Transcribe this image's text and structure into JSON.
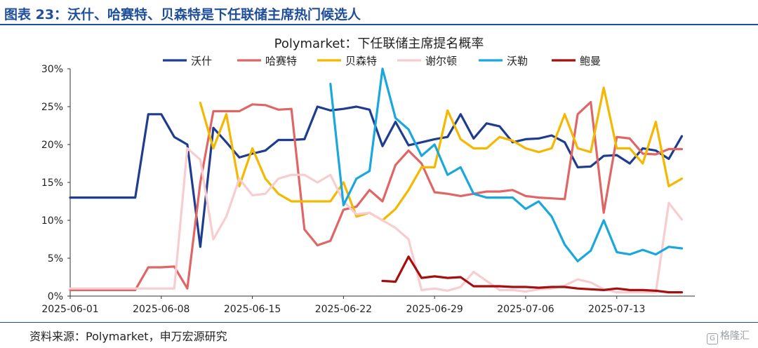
{
  "header": {
    "title": "图表 23：沃什、哈赛特、贝森特是下任联储主席热门候选人"
  },
  "footer": {
    "source": "资料来源：Polymarket，申万宏源研究"
  },
  "watermark": {
    "icon_name": "gelonghui-logo-icon",
    "text": "格隆汇"
  },
  "chart_data": {
    "type": "line",
    "title": "Polymarket：下任联储主席提名概率",
    "xlabel": "",
    "ylabel": "",
    "x_ticks": [
      "2025-06-01",
      "2025-06-08",
      "2025-06-15",
      "2025-06-22",
      "2025-06-29",
      "2025-07-06",
      "2025-07-13"
    ],
    "x_start": "2025-06-01",
    "x_end": "2025-07-19",
    "y_ticks": [
      "0%",
      "5%",
      "10%",
      "15%",
      "20%",
      "25%",
      "30%"
    ],
    "ylim": [
      0,
      30
    ],
    "y_unit": "%",
    "legend_position": "top",
    "grid": false,
    "series": [
      {
        "name": "沃什",
        "color": "#1f3d8f",
        "points": [
          [
            "2025-06-01",
            13
          ],
          [
            "2025-06-02",
            13
          ],
          [
            "2025-06-03",
            13
          ],
          [
            "2025-06-04",
            13
          ],
          [
            "2025-06-05",
            13
          ],
          [
            "2025-06-06",
            13
          ],
          [
            "2025-06-07",
            24
          ],
          [
            "2025-06-08",
            24
          ],
          [
            "2025-06-09",
            21
          ],
          [
            "2025-06-10",
            20
          ],
          [
            "2025-06-11",
            6.5
          ],
          [
            "2025-06-12",
            22.2
          ],
          [
            "2025-06-13",
            20.3
          ],
          [
            "2025-06-14",
            18.3
          ],
          [
            "2025-06-15",
            18.8
          ],
          [
            "2025-06-16",
            19.2
          ],
          [
            "2025-06-17",
            20.6
          ],
          [
            "2025-06-18",
            20.6
          ],
          [
            "2025-06-19",
            20.7
          ],
          [
            "2025-06-20",
            25
          ],
          [
            "2025-06-21",
            24.5
          ],
          [
            "2025-06-22",
            24.7
          ],
          [
            "2025-06-23",
            25
          ],
          [
            "2025-06-24",
            24.6
          ],
          [
            "2025-06-25",
            19.8
          ],
          [
            "2025-06-26",
            23
          ],
          [
            "2025-06-27",
            19.9
          ],
          [
            "2025-06-28",
            20.3
          ],
          [
            "2025-06-29",
            20.7
          ],
          [
            "2025-06-30",
            21
          ],
          [
            "2025-07-01",
            24
          ],
          [
            "2025-07-02",
            20.8
          ],
          [
            "2025-07-03",
            22.8
          ],
          [
            "2025-07-04",
            22.4
          ],
          [
            "2025-07-05",
            20.3
          ],
          [
            "2025-07-06",
            20.7
          ],
          [
            "2025-07-07",
            20.8
          ],
          [
            "2025-07-08",
            21.2
          ],
          [
            "2025-07-09",
            20.3
          ],
          [
            "2025-07-10",
            17
          ],
          [
            "2025-07-11",
            17.1
          ],
          [
            "2025-07-12",
            18.5
          ],
          [
            "2025-07-13",
            18.6
          ],
          [
            "2025-07-14",
            17.5
          ],
          [
            "2025-07-15",
            19.5
          ],
          [
            "2025-07-16",
            19.2
          ],
          [
            "2025-07-17",
            18.1
          ],
          [
            "2025-07-18",
            21.1
          ]
        ]
      },
      {
        "name": "哈赛特",
        "color": "#e06666",
        "points": [
          [
            "2025-06-01",
            0.8
          ],
          [
            "2025-06-02",
            0.8
          ],
          [
            "2025-06-03",
            0.8
          ],
          [
            "2025-06-04",
            0.8
          ],
          [
            "2025-06-05",
            0.8
          ],
          [
            "2025-06-06",
            0.8
          ],
          [
            "2025-06-07",
            3.8
          ],
          [
            "2025-06-08",
            3.8
          ],
          [
            "2025-06-09",
            3.9
          ],
          [
            "2025-06-10",
            1
          ],
          [
            "2025-06-11",
            15
          ],
          [
            "2025-06-12",
            24.4
          ],
          [
            "2025-06-13",
            24.4
          ],
          [
            "2025-06-14",
            24.4
          ],
          [
            "2025-06-15",
            25.3
          ],
          [
            "2025-06-16",
            25.2
          ],
          [
            "2025-06-17",
            24.6
          ],
          [
            "2025-06-18",
            24.7
          ],
          [
            "2025-06-19",
            8.8
          ],
          [
            "2025-06-20",
            6.7
          ],
          [
            "2025-06-21",
            7.3
          ],
          [
            "2025-06-22",
            11.4
          ],
          [
            "2025-06-23",
            11.8
          ],
          [
            "2025-06-24",
            14
          ],
          [
            "2025-06-25",
            12.5
          ],
          [
            "2025-06-26",
            17.3
          ],
          [
            "2025-06-27",
            19.2
          ],
          [
            "2025-06-28",
            17.5
          ],
          [
            "2025-06-29",
            13.7
          ],
          [
            "2025-06-30",
            13.5
          ],
          [
            "2025-07-01",
            13.2
          ],
          [
            "2025-07-02",
            13.5
          ],
          [
            "2025-07-03",
            13.8
          ],
          [
            "2025-07-04",
            13.8
          ],
          [
            "2025-07-05",
            14
          ],
          [
            "2025-07-06",
            13.2
          ],
          [
            "2025-07-07",
            13
          ],
          [
            "2025-07-08",
            12.9
          ],
          [
            "2025-07-09",
            12.8
          ],
          [
            "2025-07-10",
            24
          ],
          [
            "2025-07-11",
            25.6
          ],
          [
            "2025-07-12",
            11
          ],
          [
            "2025-07-13",
            21
          ],
          [
            "2025-07-14",
            20.8
          ],
          [
            "2025-07-15",
            18.8
          ],
          [
            "2025-07-16",
            18.7
          ],
          [
            "2025-07-17",
            19.4
          ],
          [
            "2025-07-18",
            19.4
          ]
        ]
      },
      {
        "name": "贝森特",
        "color": "#f5b800",
        "points": [
          [
            "2025-06-11",
            25.5
          ],
          [
            "2025-06-12",
            19.5
          ],
          [
            "2025-06-13",
            24
          ],
          [
            "2025-06-14",
            14.5
          ],
          [
            "2025-06-15",
            19.5
          ],
          [
            "2025-06-16",
            15.5
          ],
          [
            "2025-06-17",
            13.5
          ],
          [
            "2025-06-18",
            12.5
          ],
          [
            "2025-06-19",
            12.5
          ],
          [
            "2025-06-20",
            12.5
          ],
          [
            "2025-06-21",
            12.5
          ],
          [
            "2025-06-22",
            15
          ],
          [
            "2025-06-23",
            10.5
          ],
          [
            "2025-06-24",
            11
          ],
          [
            "2025-06-25",
            10
          ],
          [
            "2025-06-26",
            11.5
          ],
          [
            "2025-06-27",
            14
          ],
          [
            "2025-06-28",
            17
          ],
          [
            "2025-06-29",
            17
          ],
          [
            "2025-06-30",
            24.5
          ],
          [
            "2025-07-01",
            20.7
          ],
          [
            "2025-07-02",
            19.5
          ],
          [
            "2025-07-03",
            19.5
          ],
          [
            "2025-07-04",
            21
          ],
          [
            "2025-07-05",
            20.5
          ],
          [
            "2025-07-06",
            19.5
          ],
          [
            "2025-07-07",
            19
          ],
          [
            "2025-07-08",
            19.5
          ],
          [
            "2025-07-09",
            24
          ],
          [
            "2025-07-10",
            19.5
          ],
          [
            "2025-07-11",
            19
          ],
          [
            "2025-07-12",
            27.5
          ],
          [
            "2025-07-13",
            19.5
          ],
          [
            "2025-07-14",
            19.5
          ],
          [
            "2025-07-15",
            17.5
          ],
          [
            "2025-07-16",
            23
          ],
          [
            "2025-07-17",
            14.5
          ],
          [
            "2025-07-18",
            15.5
          ]
        ]
      },
      {
        "name": "谢尔顿",
        "color": "#f7cdd0",
        "points": [
          [
            "2025-06-01",
            1
          ],
          [
            "2025-06-02",
            1
          ],
          [
            "2025-06-03",
            1
          ],
          [
            "2025-06-04",
            1
          ],
          [
            "2025-06-05",
            1
          ],
          [
            "2025-06-06",
            1
          ],
          [
            "2025-06-07",
            1
          ],
          [
            "2025-06-08",
            1
          ],
          [
            "2025-06-09",
            1
          ],
          [
            "2025-06-10",
            19.5
          ],
          [
            "2025-06-11",
            18
          ],
          [
            "2025-06-12",
            7.5
          ],
          [
            "2025-06-13",
            10.5
          ],
          [
            "2025-06-14",
            15.5
          ],
          [
            "2025-06-15",
            13.3
          ],
          [
            "2025-06-16",
            13.5
          ],
          [
            "2025-06-17",
            15.5
          ],
          [
            "2025-06-18",
            16
          ],
          [
            "2025-06-19",
            16
          ],
          [
            "2025-06-20",
            15
          ],
          [
            "2025-06-21",
            16
          ],
          [
            "2025-06-22",
            12.5
          ],
          [
            "2025-06-23",
            10.8
          ],
          [
            "2025-06-24",
            11
          ],
          [
            "2025-06-25",
            10
          ],
          [
            "2025-06-26",
            9
          ],
          [
            "2025-06-27",
            7.5
          ],
          [
            "2025-06-28",
            0.8
          ],
          [
            "2025-06-29",
            1
          ],
          [
            "2025-06-30",
            0.7
          ],
          [
            "2025-07-01",
            1.2
          ],
          [
            "2025-07-02",
            3.2
          ],
          [
            "2025-07-03",
            2
          ],
          [
            "2025-07-04",
            0.8
          ],
          [
            "2025-07-05",
            0.8
          ],
          [
            "2025-07-06",
            0.6
          ],
          [
            "2025-07-07",
            0.9
          ],
          [
            "2025-07-08",
            1
          ],
          [
            "2025-07-09",
            1.4
          ],
          [
            "2025-07-10",
            2.2
          ],
          [
            "2025-07-11",
            1.8
          ],
          [
            "2025-07-12",
            0.9
          ],
          [
            "2025-07-13",
            0.5
          ],
          [
            "2025-07-14",
            0.5
          ],
          [
            "2025-07-15",
            0.5
          ],
          [
            "2025-07-16",
            0.5
          ],
          [
            "2025-07-17",
            12.3
          ],
          [
            "2025-07-18",
            10.1
          ]
        ]
      },
      {
        "name": "沃勒",
        "color": "#1aa7dd",
        "points": [
          [
            "2025-06-21",
            28
          ],
          [
            "2025-06-22",
            12
          ],
          [
            "2025-06-23",
            15.5
          ],
          [
            "2025-06-24",
            16.5
          ],
          [
            "2025-06-25",
            30
          ],
          [
            "2025-06-26",
            23.5
          ],
          [
            "2025-06-27",
            22
          ],
          [
            "2025-06-28",
            18.5
          ],
          [
            "2025-06-29",
            20
          ],
          [
            "2025-06-30",
            16
          ],
          [
            "2025-07-01",
            17
          ],
          [
            "2025-07-02",
            13.5
          ],
          [
            "2025-07-03",
            13
          ],
          [
            "2025-07-04",
            13
          ],
          [
            "2025-07-05",
            13
          ],
          [
            "2025-07-06",
            11.5
          ],
          [
            "2025-07-07",
            12.5
          ],
          [
            "2025-07-08",
            10.5
          ],
          [
            "2025-07-09",
            6.8
          ],
          [
            "2025-07-10",
            4.6
          ],
          [
            "2025-07-11",
            6
          ],
          [
            "2025-07-12",
            10
          ],
          [
            "2025-07-13",
            5.8
          ],
          [
            "2025-07-14",
            5.5
          ],
          [
            "2025-07-15",
            6.1
          ],
          [
            "2025-07-16",
            5.5
          ],
          [
            "2025-07-17",
            6.5
          ],
          [
            "2025-07-18",
            6.3
          ]
        ]
      },
      {
        "name": "鲍曼",
        "color": "#a50f0f",
        "points": [
          [
            "2025-06-25",
            2
          ],
          [
            "2025-06-26",
            1.9
          ],
          [
            "2025-06-27",
            5.2
          ],
          [
            "2025-06-28",
            2.4
          ],
          [
            "2025-06-29",
            2.6
          ],
          [
            "2025-06-30",
            2.4
          ],
          [
            "2025-07-01",
            2.5
          ],
          [
            "2025-07-02",
            1.3
          ],
          [
            "2025-07-03",
            1.3
          ],
          [
            "2025-07-04",
            1.3
          ],
          [
            "2025-07-05",
            1.2
          ],
          [
            "2025-07-06",
            1.2
          ],
          [
            "2025-07-07",
            1.1
          ],
          [
            "2025-07-08",
            1.2
          ],
          [
            "2025-07-09",
            1.2
          ],
          [
            "2025-07-10",
            1
          ],
          [
            "2025-07-11",
            0.9
          ],
          [
            "2025-07-12",
            0.8
          ],
          [
            "2025-07-13",
            1
          ],
          [
            "2025-07-14",
            0.8
          ],
          [
            "2025-07-15",
            0.8
          ],
          [
            "2025-07-16",
            0.7
          ],
          [
            "2025-07-17",
            0.5
          ],
          [
            "2025-07-18",
            0.5
          ]
        ]
      }
    ]
  }
}
